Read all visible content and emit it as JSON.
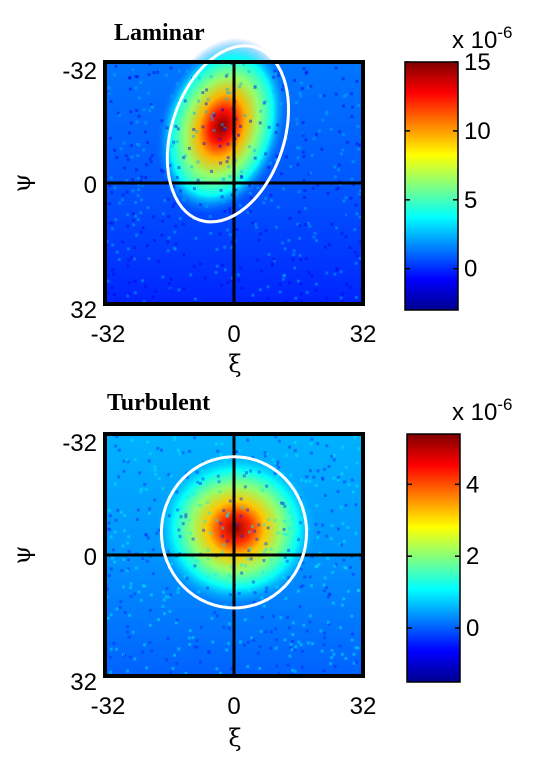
{
  "figure": {
    "colormap": "jet",
    "axis_color": "#000000",
    "marker_color": "#ffffff"
  },
  "chart_data": [
    {
      "type": "heatmap",
      "title": "Laminar",
      "xlabel": "ξ",
      "ylabel": "ψ",
      "xlim": [
        -32,
        32
      ],
      "ylim": [
        -32,
        32
      ],
      "y_inverted": true,
      "x_ticks": [
        "-32",
        "0",
        "32"
      ],
      "y_ticks": [
        "-32",
        "0",
        "32"
      ],
      "colorbar": {
        "multiplier": "x 10",
        "exponent": "-6",
        "range": [
          -3,
          15
        ],
        "ticks": [
          "15",
          "10",
          "5",
          "0"
        ],
        "tick_values": [
          15,
          10,
          5,
          0
        ]
      },
      "peak": {
        "x": -3,
        "y": -15,
        "value": 15
      },
      "ellipse": {
        "cx": -1.5,
        "cy": -13,
        "rx": 7,
        "ry": 12,
        "rotation_deg": 18
      }
    },
    {
      "type": "heatmap",
      "title": "Turbulent",
      "xlabel": "ξ",
      "ylabel": "ψ",
      "xlim": [
        -32,
        32
      ],
      "ylim": [
        -32,
        32
      ],
      "y_inverted": true,
      "x_ticks": [
        "-32",
        "0",
        "32"
      ],
      "y_ticks": [
        "-32",
        "0",
        "32"
      ],
      "colorbar": {
        "multiplier": "x 10",
        "exponent": "-6",
        "range": [
          -1.5,
          5.4
        ],
        "ticks": [
          "4",
          "2",
          "0"
        ],
        "tick_values": [
          4,
          2,
          0
        ]
      },
      "peak": {
        "x": 0.5,
        "y": -7,
        "value": 5.2
      },
      "ellipse": {
        "cx": 0,
        "cy": -6,
        "rx": 9,
        "ry": 10,
        "rotation_deg": 0
      }
    }
  ]
}
